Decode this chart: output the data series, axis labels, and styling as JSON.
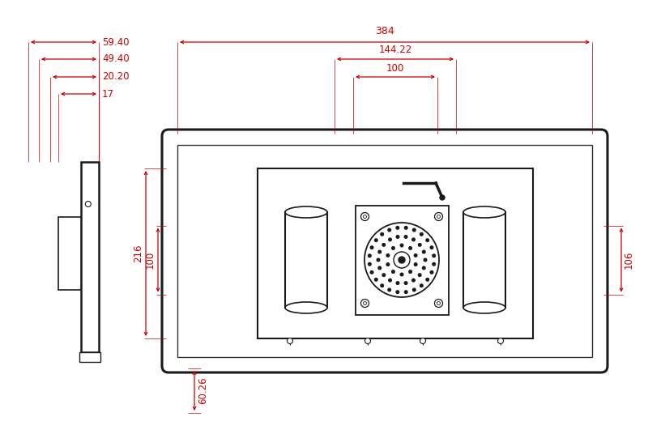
{
  "bg_color": "#ffffff",
  "line_color": "#1a1a1a",
  "dim_color": "#cc0000",
  "fig_width": 8.0,
  "fig_height": 5.36,
  "dpi": 100,
  "labels": {
    "d1": "59.40",
    "d2": "49.40",
    "d3": "20.20",
    "d4": "17",
    "w1": "384",
    "w2": "144.22",
    "w3": "100",
    "h1": "216",
    "h2": "100",
    "h3": "106",
    "h4": "60.26"
  }
}
